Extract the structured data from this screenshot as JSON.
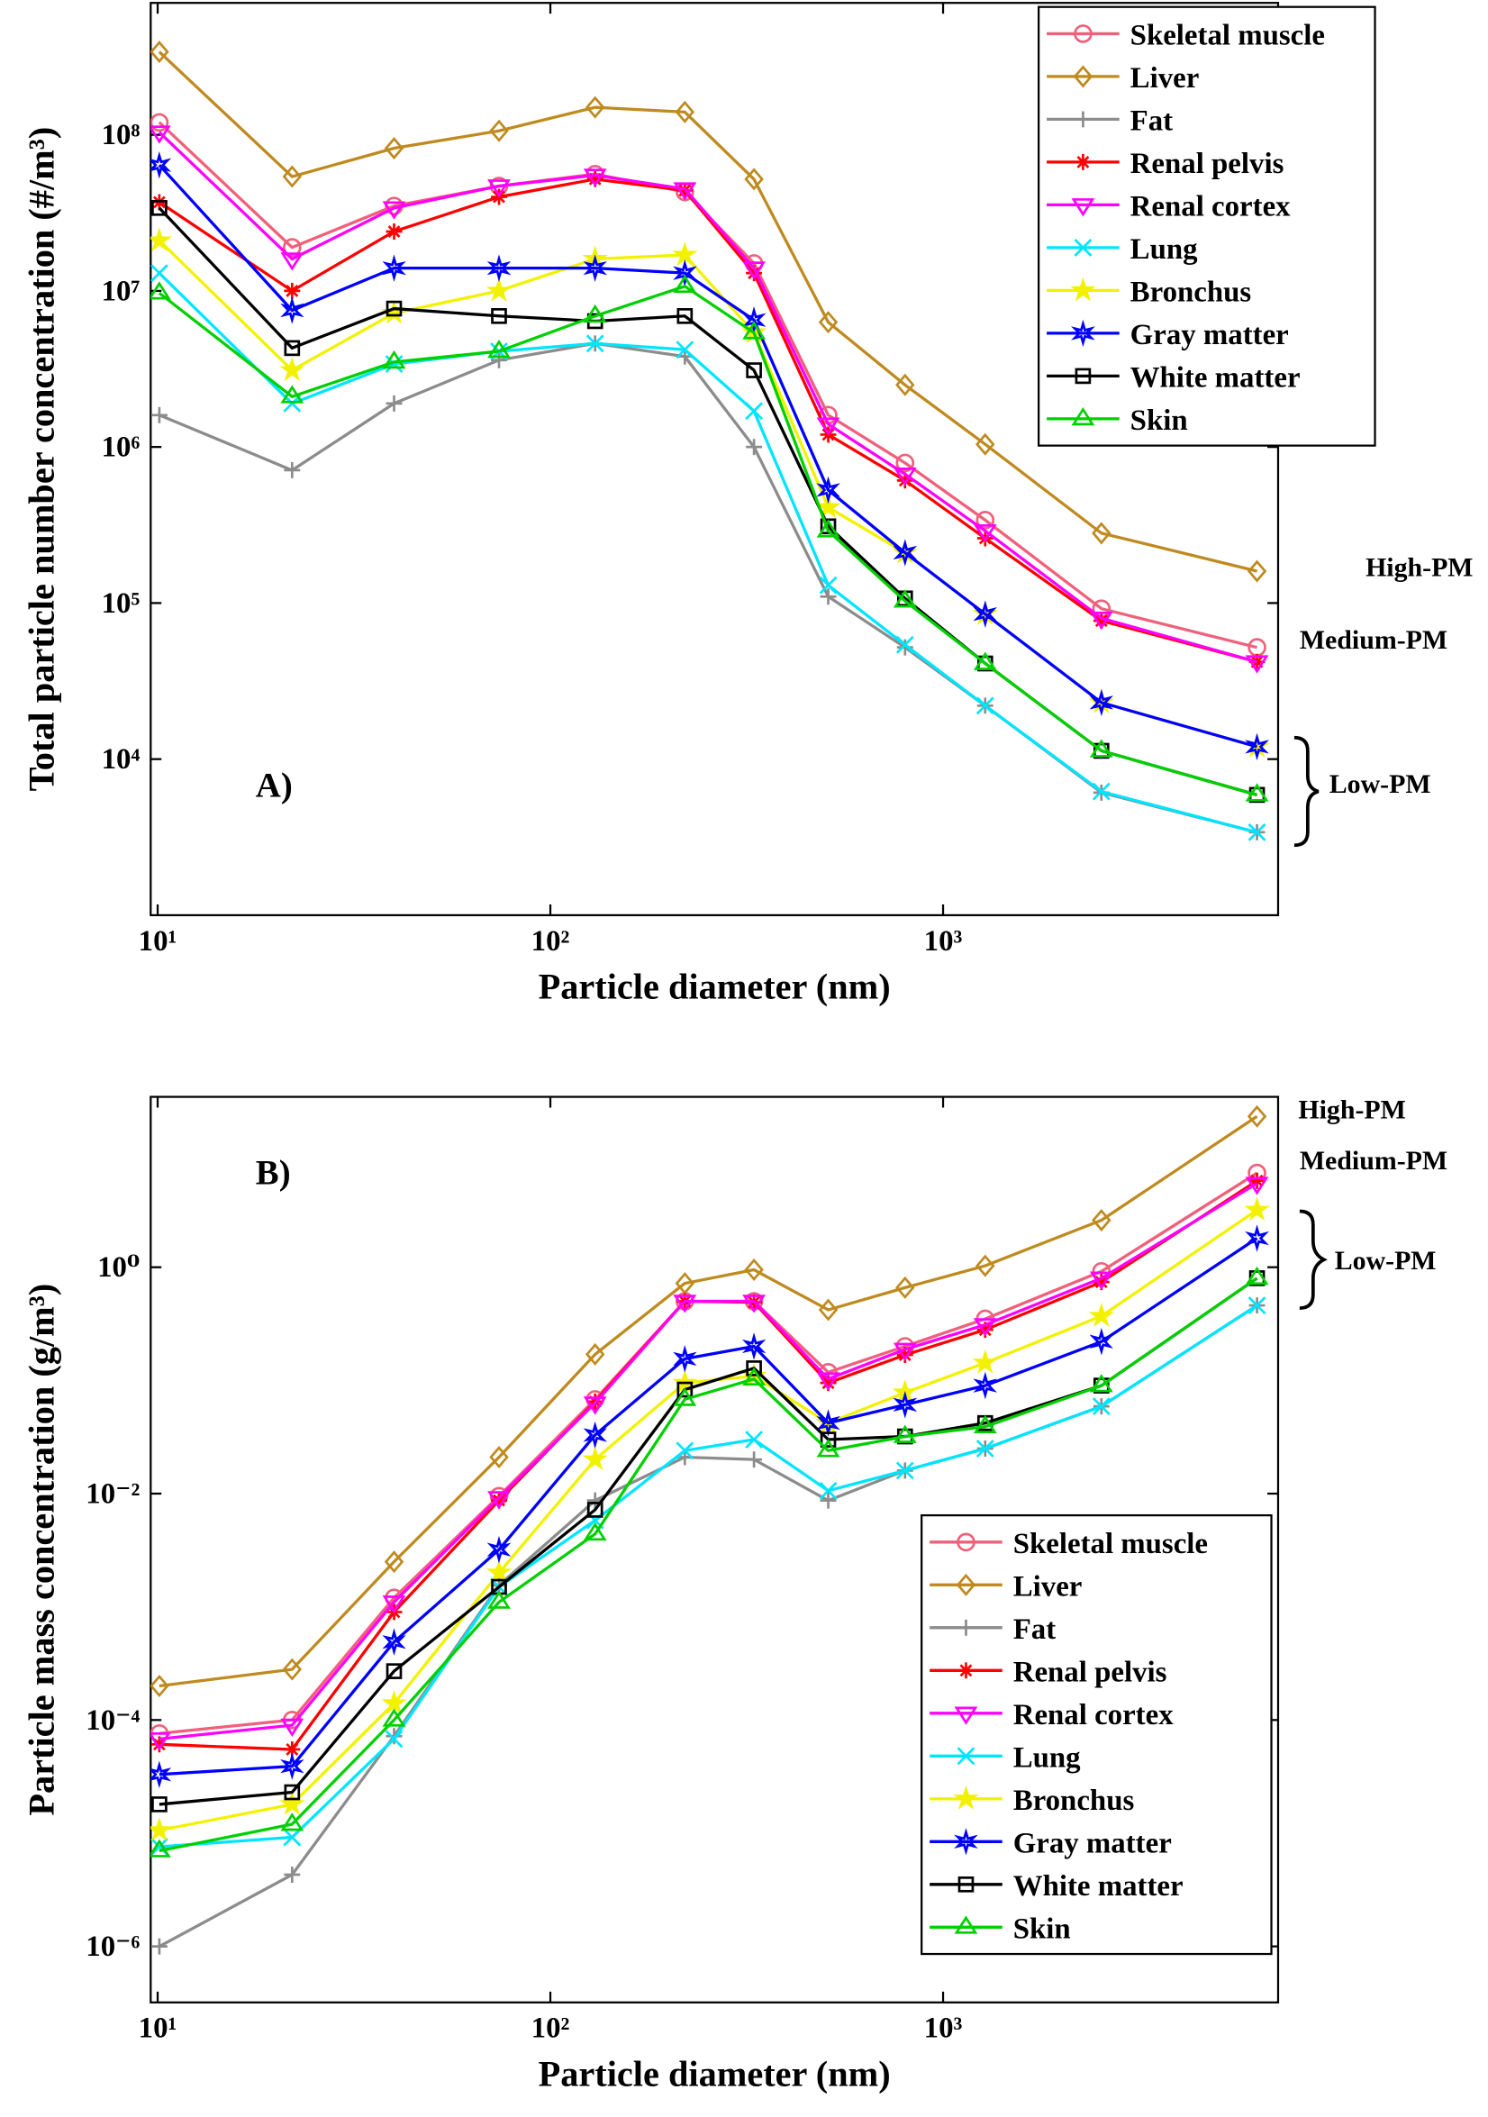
{
  "chart_data": [
    {
      "type": "line",
      "ylabel": "Total particle number concentration (#/m³)",
      "xlabel": "Particle diameter (nm)",
      "annotations": [
        "A)",
        "High-PM",
        "Medium-PM",
        "Low-PM"
      ],
      "log_x": true,
      "log_y": true,
      "grid": false,
      "legend": "upper right",
      "xlim": [
        9.6,
        7130
      ],
      "ylim": [
        1000,
        700000000
      ],
      "xticks": [
        {
          "value": 10,
          "label": "10¹"
        },
        {
          "value": 100,
          "label": "10²"
        },
        {
          "value": 1000,
          "label": "10³"
        }
      ],
      "yticks": [
        {
          "value": 10000,
          "label": "10⁴"
        },
        {
          "value": 100000,
          "label": "10⁵"
        },
        {
          "value": 1000000,
          "label": "10⁶"
        },
        {
          "value": 10000000,
          "label": "10⁷"
        },
        {
          "value": 100000000,
          "label": "10⁸"
        }
      ],
      "x": [
        10.1,
        22,
        40,
        74,
        130,
        220,
        330,
        510,
        800,
        1280,
        2530,
        6300
      ],
      "series": [
        {
          "name": "Skeletal muscle",
          "color": "#f0607a",
          "marker": "circle",
          "values": [
            120000000,
            19000000,
            35000000,
            47000000,
            56000000,
            43000000,
            15000000,
            1600000,
            790000,
            340000,
            92000,
            52000
          ]
        },
        {
          "name": "Liver",
          "color": "#bf8a1e",
          "marker": "diamond",
          "values": [
            340000000,
            54000000,
            82000000,
            106000000,
            150000000,
            140000000,
            52000000,
            6300000,
            2500000,
            1040000,
            280000,
            160000
          ]
        },
        {
          "name": "Fat",
          "color": "#8c8c8c",
          "marker": "plus",
          "values": [
            1600000,
            710000,
            1900000,
            3600000,
            4600000,
            3800000,
            1000000,
            110000,
            52000,
            22000,
            6100,
            3400
          ]
        },
        {
          "name": "Renal pelvis",
          "color": "#ff0000",
          "marker": "asterisk",
          "values": [
            37000000,
            10000000,
            24000000,
            40000000,
            52000000,
            44000000,
            13000000,
            1200000,
            610000,
            260000,
            77000,
            42000
          ]
        },
        {
          "name": "Renal cortex",
          "color": "#ff00ff",
          "marker": "tridown",
          "values": [
            104000000,
            16000000,
            34000000,
            47000000,
            55000000,
            45000000,
            14000000,
            1400000,
            670000,
            290000,
            80000,
            42000
          ]
        },
        {
          "name": "Lung",
          "color": "#00e5ff",
          "marker": "cross",
          "values": [
            13000000,
            1900000,
            3400000,
            4100000,
            4600000,
            4200000,
            1700000,
            130000,
            54000,
            22000,
            6200,
            3400
          ]
        },
        {
          "name": "Bronchus",
          "color": "#f2f200",
          "marker": "star",
          "values": [
            21000000,
            3100000,
            7200000,
            10000000,
            16000000,
            17000000,
            5400000,
            410000,
            210000,
            85000,
            23000,
            12000
          ]
        },
        {
          "name": "Gray matter",
          "color": "#0000ff",
          "marker": "hexagram",
          "values": [
            64000000,
            7500000,
            14000000,
            14000000,
            14000000,
            13000000,
            6500000,
            530000,
            210000,
            85000,
            23000,
            12000
          ]
        },
        {
          "name": "White matter",
          "color": "#000000",
          "marker": "square",
          "values": [
            34000000,
            4300000,
            7700000,
            6900000,
            6400000,
            6900000,
            3100000,
            310000,
            107000,
            41000,
            11300,
            5900
          ]
        },
        {
          "name": "Skin",
          "color": "#00d000",
          "marker": "triup",
          "values": [
            9700000,
            2100000,
            3500000,
            4100000,
            6900000,
            10700000,
            5400000,
            290000,
            103000,
            41000,
            11300,
            5900
          ]
        }
      ]
    },
    {
      "type": "line",
      "ylabel": "Particle mass concentration (g/m³)",
      "xlabel": "Particle diameter (nm)",
      "annotations": [
        "B)",
        "High-PM",
        "Medium-PM",
        "Low-PM"
      ],
      "log_x": true,
      "log_y": true,
      "grid": false,
      "legend": "lower right",
      "xlim": [
        9.6,
        7130
      ],
      "ylim": [
        3.2e-07,
        32
      ],
      "xticks": [
        {
          "value": 10,
          "label": "10¹"
        },
        {
          "value": 100,
          "label": "10²"
        },
        {
          "value": 1000,
          "label": "10³"
        }
      ],
      "yticks": [
        {
          "value": 1e-06,
          "label": "10⁻⁶"
        },
        {
          "value": 0.0001,
          "label": "10⁻⁴"
        },
        {
          "value": 0.01,
          "label": "10⁻²"
        },
        {
          "value": 1,
          "label": "10⁰"
        }
      ],
      "x": [
        10.1,
        22,
        40,
        74,
        130,
        220,
        330,
        510,
        800,
        1280,
        2530,
        6300
      ],
      "series": [
        {
          "name": "Skeletal muscle",
          "color": "#f0607a",
          "marker": "circle",
          "values": [
            7.6e-05,
            0.0001,
            0.0012,
            0.0095,
            0.068,
            0.5,
            0.5,
            0.118,
            0.2,
            0.35,
            0.92,
            6.8
          ]
        },
        {
          "name": "Liver",
          "color": "#bf8a1e",
          "marker": "diamond",
          "values": [
            0.0002,
            0.00028,
            0.0025,
            0.021,
            0.17,
            0.72,
            0.95,
            0.42,
            0.66,
            1.03,
            2.6,
            21.5
          ]
        },
        {
          "name": "Fat",
          "color": "#8c8c8c",
          "marker": "plus",
          "values": [
            1e-06,
            4.3e-06,
            7.2e-05,
            0.00155,
            0.0087,
            0.021,
            0.02,
            0.0087,
            0.016,
            0.025,
            0.059,
            0.46
          ]
        },
        {
          "name": "Renal pelvis",
          "color": "#ff0000",
          "marker": "asterisk",
          "values": [
            6.1e-05,
            5.5e-05,
            0.0009,
            0.0087,
            0.065,
            0.5,
            0.49,
            0.095,
            0.168,
            0.28,
            0.74,
            5.8
          ]
        },
        {
          "name": "Renal cortex",
          "color": "#ff00ff",
          "marker": "tridown",
          "values": [
            6.8e-05,
            9e-05,
            0.0011,
            0.0092,
            0.063,
            0.5,
            0.5,
            0.103,
            0.188,
            0.31,
            0.8,
            5.5
          ]
        },
        {
          "name": "Lung",
          "color": "#00e5ff",
          "marker": "cross",
          "values": [
            7.6e-06,
            9.2e-06,
            6.8e-05,
            0.0015,
            0.0058,
            0.024,
            0.03,
            0.0106,
            0.016,
            0.025,
            0.059,
            0.46
          ]
        },
        {
          "name": "Bronchus",
          "color": "#f2f200",
          "marker": "star",
          "values": [
            1.06e-05,
            1.8e-05,
            0.00014,
            0.002,
            0.02,
            0.095,
            0.109,
            0.042,
            0.078,
            0.143,
            0.37,
            3.2
          ]
        },
        {
          "name": "Gray matter",
          "color": "#0000ff",
          "marker": "hexagram",
          "values": [
            3.3e-05,
            3.9e-05,
            0.00049,
            0.0032,
            0.033,
            0.155,
            0.2,
            0.042,
            0.061,
            0.09,
            0.22,
            1.8
          ]
        },
        {
          "name": "White matter",
          "color": "#000000",
          "marker": "square",
          "values": [
            1.8e-05,
            2.3e-05,
            0.00027,
            0.0015,
            0.0072,
            0.083,
            0.128,
            0.03,
            0.032,
            0.042,
            0.09,
            0.8
          ]
        },
        {
          "name": "Skin",
          "color": "#00d000",
          "marker": "triup",
          "values": [
            7e-06,
            1.2e-05,
            0.0001,
            0.0011,
            0.0044,
            0.068,
            0.103,
            0.024,
            0.032,
            0.039,
            0.09,
            0.8
          ]
        }
      ]
    }
  ]
}
